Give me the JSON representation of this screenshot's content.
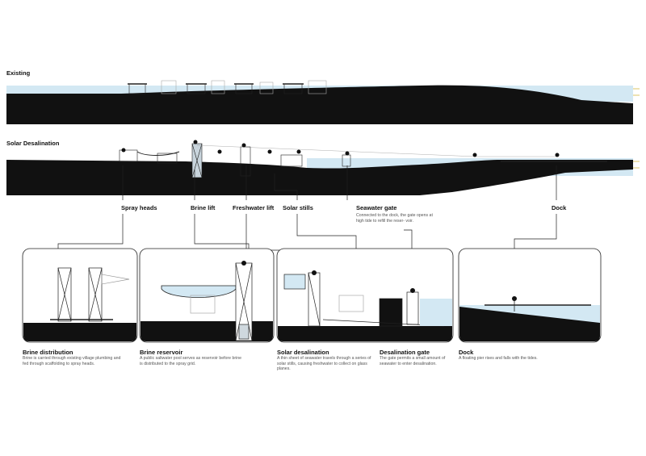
{
  "sections": {
    "existing": "Existing",
    "solar": "Solar Desalination"
  },
  "callouts": [
    {
      "label": "Spray heads"
    },
    {
      "label": "Brine lift"
    },
    {
      "label": "Freshwater lift"
    },
    {
      "label": "Solar stills"
    },
    {
      "label": "Seawater gate",
      "desc": "Connected to the dock, the gate opens at high tide to refill the reser- voir."
    },
    {
      "label": "Dock"
    }
  ],
  "panels": [
    {
      "title": "Brine distribution",
      "desc": "Brine is carried through existing village plumbing and fed through scaffolding to spray heads."
    },
    {
      "title": "Brine reservoir",
      "desc": "A public saltwater pool serves as reservoir before brine is distributed to the spray grid."
    },
    {
      "title": "Solar desalination",
      "desc": "A thin sheet of seawater travels through a series of solar stills, causing freshwater to collect on glass planes."
    },
    {
      "title": "Desalination gate",
      "desc": "The gate permits a small amount of seawater to enter desalination."
    },
    {
      "title": "Dock",
      "desc": "A floating pier rises and falls with the tides."
    }
  ],
  "colors": {
    "ground": "#111111",
    "water": "#cfe6f2",
    "line": "#222222",
    "pale": "#9aa0a6"
  }
}
